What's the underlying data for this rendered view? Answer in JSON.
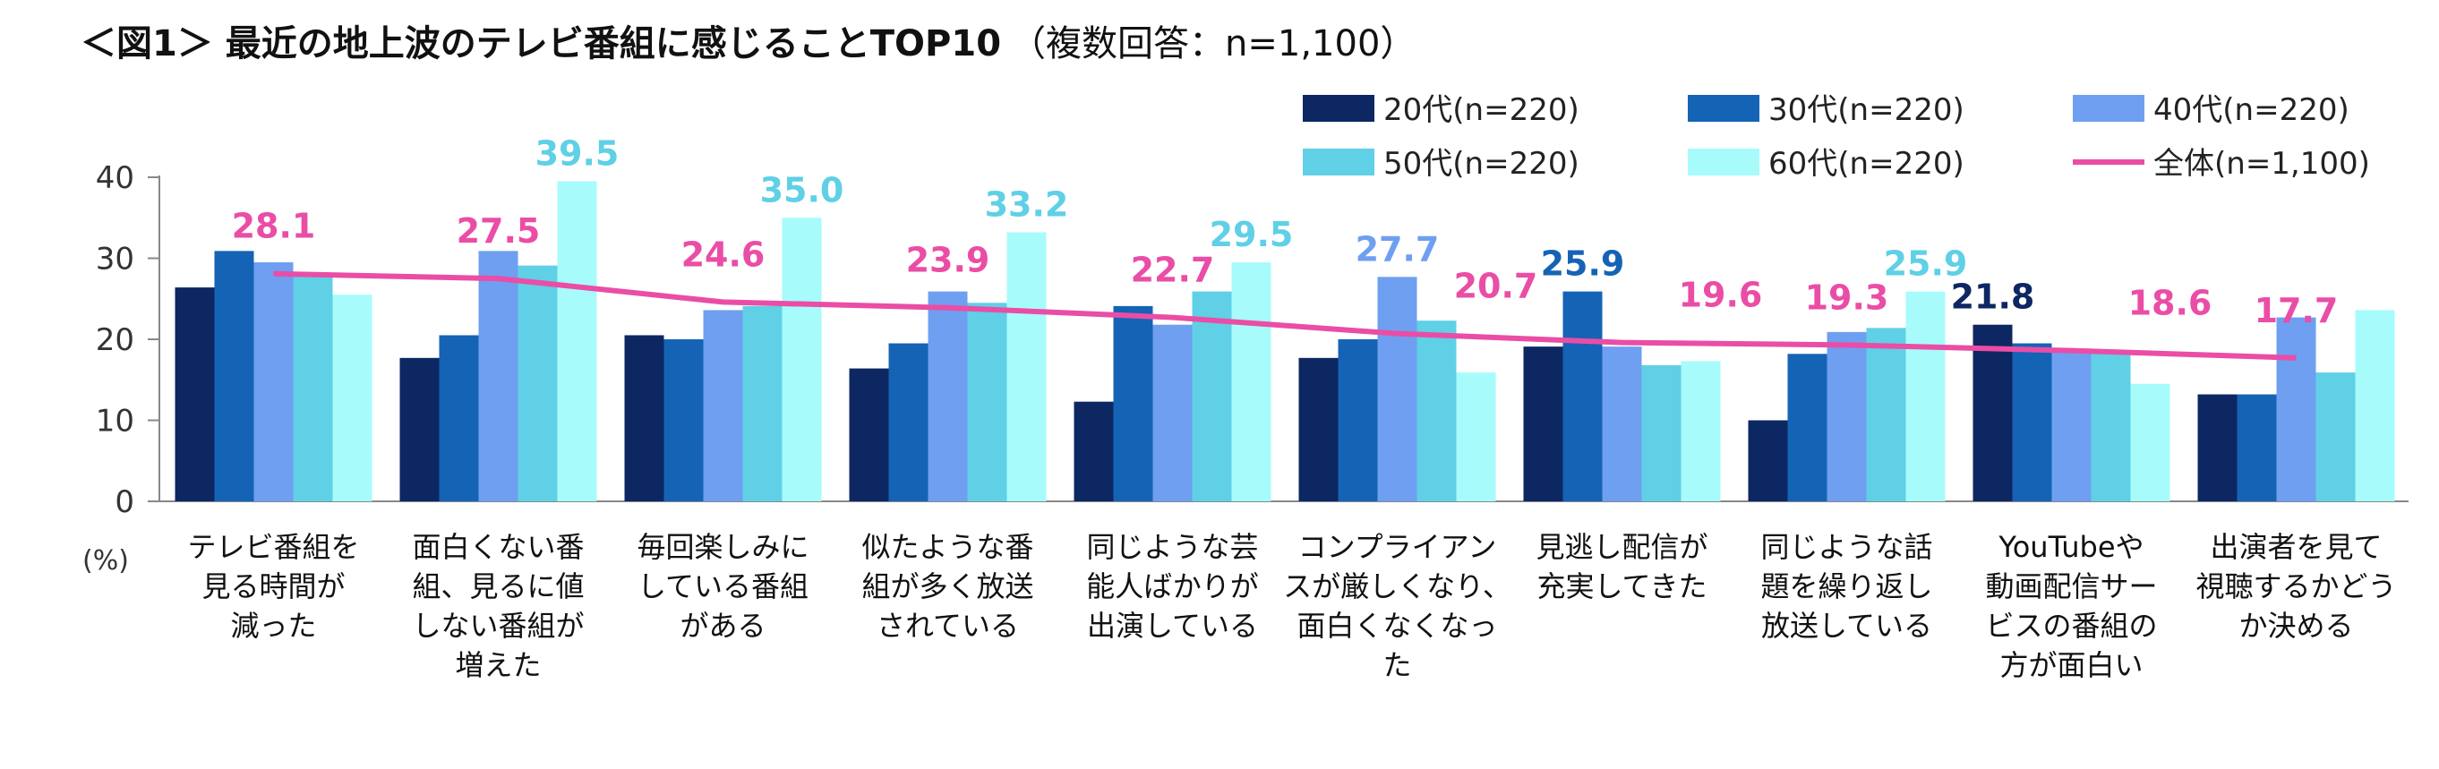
{
  "chart_data": {
    "type": "bar",
    "title": "＜図1＞ 最近の地上波のテレビ番組に感じることTOP10",
    "subtitle": "（複数回答：n=1,100）",
    "ylabel": "(%)",
    "ylim": [
      0,
      40
    ],
    "yticks": [
      0,
      10,
      20,
      30,
      40
    ],
    "legend_position": "top-right",
    "categories": [
      [
        "テレビ番組を",
        "見る時間が",
        "減った"
      ],
      [
        "面白くない番",
        "組、見るに値",
        "しない番組が",
        "増えた"
      ],
      [
        "毎回楽しみに",
        "している番組",
        "がある"
      ],
      [
        "似たような番",
        "組が多く放送",
        "されている"
      ],
      [
        "同じような芸",
        "能人ばかりが",
        "出演している"
      ],
      [
        "コンプライアン",
        "スが厳しくなり、",
        "面白くなくなっ",
        "た"
      ],
      [
        "見逃し配信が",
        "充実してきた"
      ],
      [
        "同じような話",
        "題を繰り返し",
        "放送している"
      ],
      [
        "YouTubeや",
        "動画配信サー",
        "ビスの番組の",
        "方が面白い"
      ],
      [
        "出演者を見て",
        "視聴するかどう",
        "か決める"
      ]
    ],
    "series": [
      {
        "name": "20代(n=220)",
        "color": "#0d2763",
        "values": [
          26.4,
          17.7,
          20.5,
          16.4,
          12.3,
          17.7,
          19.1,
          10.0,
          21.8,
          13.2
        ]
      },
      {
        "name": "30代(n=220)",
        "color": "#1563b5",
        "values": [
          30.9,
          20.5,
          20.0,
          19.5,
          24.1,
          20.0,
          25.9,
          18.2,
          19.5,
          13.2
        ]
      },
      {
        "name": "40代(n=220)",
        "color": "#6f9ff0",
        "values": [
          29.5,
          30.9,
          23.6,
          25.9,
          21.8,
          27.7,
          19.1,
          20.9,
          18.6,
          22.7
        ]
      },
      {
        "name": "50代(n=220)",
        "color": "#5fd0e6",
        "values": [
          28.2,
          29.1,
          24.1,
          24.5,
          25.9,
          22.3,
          16.8,
          21.4,
          18.2,
          15.9
        ]
      },
      {
        "name": "60代(n=220)",
        "color": "#a8fbfb",
        "values": [
          25.5,
          39.5,
          35.0,
          33.2,
          29.5,
          15.9,
          17.3,
          25.9,
          14.5,
          23.6
        ]
      }
    ],
    "line_series": {
      "name": "全体(n=1,100)",
      "color": "#ea4da6",
      "values": [
        28.1,
        27.5,
        24.6,
        23.9,
        22.7,
        20.7,
        19.6,
        19.3,
        18.6,
        17.7
      ]
    },
    "highlight_labels": [
      {
        "category": 0,
        "series": "全体",
        "value": "28.1"
      },
      {
        "category": 1,
        "series": "60代",
        "value": "39.5"
      },
      {
        "category": 1,
        "series": "全体",
        "value": "27.5"
      },
      {
        "category": 2,
        "series": "60代",
        "value": "35.0"
      },
      {
        "category": 2,
        "series": "全体",
        "value": "24.6"
      },
      {
        "category": 3,
        "series": "60代",
        "value": "33.2"
      },
      {
        "category": 3,
        "series": "全体",
        "value": "23.9"
      },
      {
        "category": 4,
        "series": "60代",
        "value": "29.5"
      },
      {
        "category": 4,
        "series": "全体",
        "value": "22.7"
      },
      {
        "category": 5,
        "series": "40代",
        "value": "27.7"
      },
      {
        "category": 5,
        "series": "全体",
        "value": "20.7"
      },
      {
        "category": 6,
        "series": "30代",
        "value": "25.9"
      },
      {
        "category": 6,
        "series": "全体",
        "value": "19.6"
      },
      {
        "category": 7,
        "series": "全体",
        "value": "19.3"
      },
      {
        "category": 7,
        "series": "60代",
        "value": "25.9"
      },
      {
        "category": 8,
        "series": "20代",
        "value": "21.8"
      },
      {
        "category": 8,
        "series": "全体",
        "value": "18.6"
      },
      {
        "category": 9,
        "series": "全体",
        "value": "17.7"
      }
    ]
  }
}
